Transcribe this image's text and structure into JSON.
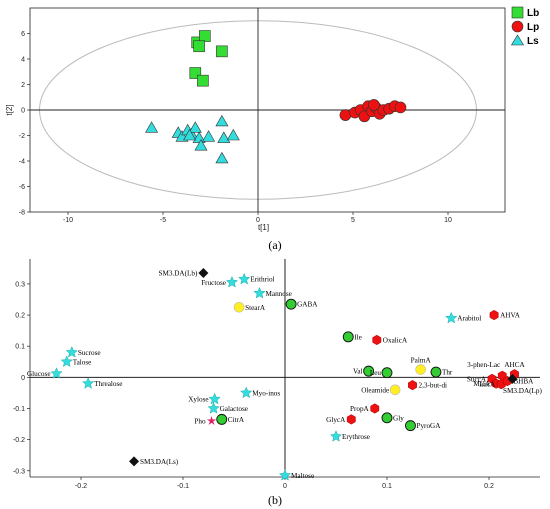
{
  "chart_data": [
    {
      "type": "scatter",
      "panel_label": "(a)",
      "xlabel": "t[1]",
      "ylabel": "t[2]",
      "xlim": [
        -12,
        13
      ],
      "ylim": [
        -8,
        8
      ],
      "xticks": [
        -10,
        -5,
        0,
        5,
        10
      ],
      "yticks": [
        -8,
        -6,
        -4,
        -2,
        0,
        2,
        4,
        6
      ],
      "xtick_labels": [
        "-10",
        "-5",
        "0",
        "5",
        "10"
      ],
      "ytick_labels": [
        "-8",
        "-6",
        "-4",
        "-2",
        "0",
        "2",
        "4",
        "6"
      ],
      "ellipse": {
        "center": [
          0,
          0
        ],
        "rx": 11.5,
        "ry": 7
      },
      "legend_position": "top-right",
      "colors": {
        "Lb": "#33dd33",
        "Lp": "#ee1111",
        "Ls": "#33dddd"
      },
      "series": [
        {
          "name": "Lb",
          "marker": "square",
          "points": [
            [
              -3.2,
              5.3
            ],
            [
              -2.8,
              5.8
            ],
            [
              -3.1,
              5.0
            ],
            [
              -1.9,
              4.6
            ],
            [
              -3.3,
              2.9
            ],
            [
              -2.9,
              2.3
            ]
          ]
        },
        {
          "name": "Lp",
          "marker": "circle",
          "points": [
            [
              4.6,
              -0.4
            ],
            [
              5.1,
              -0.2
            ],
            [
              5.4,
              0.0
            ],
            [
              5.6,
              -0.5
            ],
            [
              5.8,
              0.3
            ],
            [
              6.0,
              -0.1
            ],
            [
              6.2,
              0.2
            ],
            [
              6.4,
              -0.3
            ],
            [
              6.6,
              0.0
            ],
            [
              6.9,
              0.1
            ],
            [
              7.2,
              0.3
            ],
            [
              7.5,
              0.2
            ],
            [
              6.1,
              0.4
            ]
          ]
        },
        {
          "name": "Ls",
          "marker": "triangle",
          "points": [
            [
              -5.6,
              -1.4
            ],
            [
              -4.2,
              -1.8
            ],
            [
              -4.0,
              -2.1
            ],
            [
              -3.7,
              -1.6
            ],
            [
              -3.5,
              -1.9
            ],
            [
              -3.3,
              -1.4
            ],
            [
              -3.1,
              -2.2
            ],
            [
              -3.0,
              -2.8
            ],
            [
              -2.6,
              -2.1
            ],
            [
              -1.9,
              -0.9
            ],
            [
              -1.8,
              -2.2
            ],
            [
              -1.3,
              -2.0
            ],
            [
              -1.9,
              -3.8
            ],
            [
              -3.6,
              -2.0
            ]
          ]
        }
      ]
    },
    {
      "type": "scatter",
      "panel_label": "(b)",
      "xlim": [
        -0.25,
        0.25
      ],
      "ylim": [
        -0.32,
        0.38
      ],
      "xticks": [
        -0.2,
        -0.1,
        0,
        0.1,
        0.2
      ],
      "yticks": [
        -0.3,
        -0.2,
        -0.1,
        0,
        0.1,
        0.2,
        0.3
      ],
      "xtick_labels": [
        "-0.2",
        "-0.1",
        "0",
        "0.1",
        "0.2"
      ],
      "ytick_labels": [
        "-0.3",
        "-0.2",
        "-0.1",
        "0",
        "0.1",
        "0.2",
        "0.3"
      ],
      "colors": {
        "star": "#33dddd",
        "hex": "#ee1111",
        "circle": "#33cc33",
        "yellow": "#ffee22",
        "diamond": "#111111",
        "pho": "#dd2266"
      },
      "points": [
        {
          "label": "SM3.DA(Lb)",
          "x": -0.08,
          "y": 0.335,
          "marker": "diamond",
          "label_side": "left"
        },
        {
          "label": "Fructose",
          "x": -0.052,
          "y": 0.305,
          "marker": "star",
          "label_side": "left"
        },
        {
          "label": "Erithriol",
          "x": -0.04,
          "y": 0.315,
          "marker": "star",
          "label_side": "right"
        },
        {
          "label": "Mannose",
          "x": -0.025,
          "y": 0.27,
          "marker": "star",
          "label_side": "right"
        },
        {
          "label": "StearA",
          "x": -0.045,
          "y": 0.225,
          "marker": "yellow",
          "label_side": "right"
        },
        {
          "label": "GABA",
          "x": 0.006,
          "y": 0.235,
          "marker": "circle",
          "label_side": "right"
        },
        {
          "label": "Sucrose",
          "x": -0.209,
          "y": 0.08,
          "marker": "star",
          "label_side": "right"
        },
        {
          "label": "Talose",
          "x": -0.214,
          "y": 0.05,
          "marker": "star",
          "label_side": "right"
        },
        {
          "label": "Glucose",
          "x": -0.224,
          "y": 0.012,
          "marker": "star",
          "label_side": "left"
        },
        {
          "label": "Threalose",
          "x": -0.193,
          "y": -0.02,
          "marker": "star",
          "label_side": "right"
        },
        {
          "label": "Xylose",
          "x": -0.069,
          "y": -0.07,
          "marker": "star",
          "label_side": "left"
        },
        {
          "label": "Myo-inos",
          "x": -0.038,
          "y": -0.05,
          "marker": "star",
          "label_side": "right"
        },
        {
          "label": "Galactose",
          "x": -0.07,
          "y": -0.1,
          "marker": "star",
          "label_side": "right"
        },
        {
          "label": "Pho",
          "x": -0.072,
          "y": -0.14,
          "marker": "pho",
          "label_side": "left"
        },
        {
          "label": "CitrA",
          "x": -0.062,
          "y": -0.135,
          "marker": "circle",
          "label_side": "right"
        },
        {
          "label": "SM3.DA(Ls)",
          "x": -0.148,
          "y": -0.27,
          "marker": "diamond",
          "label_side": "right"
        },
        {
          "label": "Maltose",
          "x": 0.0,
          "y": -0.315,
          "marker": "star",
          "label_side": "right"
        },
        {
          "label": "Ile",
          "x": 0.062,
          "y": 0.13,
          "marker": "circle",
          "label_side": "right"
        },
        {
          "label": "OxalicA",
          "x": 0.09,
          "y": 0.12,
          "marker": "hex",
          "label_side": "right"
        },
        {
          "label": "Arabitol",
          "x": 0.163,
          "y": 0.19,
          "marker": "star",
          "label_side": "right"
        },
        {
          "label": "AHVA",
          "x": 0.205,
          "y": 0.2,
          "marker": "hex",
          "label_side": "right"
        },
        {
          "label": "Val",
          "x": 0.082,
          "y": 0.02,
          "marker": "circle",
          "label_side": "left"
        },
        {
          "label": "Leu",
          "x": 0.1,
          "y": 0.015,
          "marker": "circle",
          "label_side": "left"
        },
        {
          "label": "PalmA",
          "x": 0.133,
          "y": 0.025,
          "marker": "yellow",
          "label_side": "above"
        },
        {
          "label": "Thr",
          "x": 0.148,
          "y": 0.017,
          "marker": "circle",
          "label_side": "right"
        },
        {
          "label": "Oleamide",
          "x": 0.108,
          "y": -0.04,
          "marker": "yellow",
          "label_side": "left"
        },
        {
          "label": "2,3-but-di",
          "x": 0.125,
          "y": -0.025,
          "marker": "hex",
          "label_side": "right"
        },
        {
          "label": "PropA",
          "x": 0.088,
          "y": -0.1,
          "marker": "hex",
          "label_side": "left"
        },
        {
          "label": "GlycA",
          "x": 0.065,
          "y": -0.135,
          "marker": "hex",
          "label_side": "left"
        },
        {
          "label": "Gly",
          "x": 0.1,
          "y": -0.13,
          "marker": "circle",
          "label_side": "right"
        },
        {
          "label": "PyroGA",
          "x": 0.123,
          "y": -0.155,
          "marker": "circle",
          "label_side": "right"
        },
        {
          "label": "Erythrose",
          "x": 0.05,
          "y": -0.19,
          "marker": "star",
          "label_side": "right"
        },
        {
          "label": "3-phen-Lac",
          "x": 0.213,
          "y": 0.005,
          "marker": "hex",
          "label_side": "above-left"
        },
        {
          "label": "AHCA",
          "x": 0.225,
          "y": 0.01,
          "marker": "hex",
          "label_side": "above"
        },
        {
          "label": "SuccA",
          "x": 0.203,
          "y": -0.005,
          "marker": "hex",
          "label_side": "left"
        },
        {
          "label": "MalA",
          "x": 0.207,
          "y": -0.02,
          "marker": "hex",
          "label_side": "left"
        },
        {
          "label": "LacA",
          "x": 0.212,
          "y": -0.022,
          "marker": "hex",
          "label_side": "left"
        },
        {
          "label": "BHBA",
          "x": 0.218,
          "y": -0.012,
          "marker": "hex",
          "label_side": "right"
        },
        {
          "label": "SM3.DA(Lp)",
          "x": 0.223,
          "y": -0.005,
          "marker": "diamond",
          "label_side": "below"
        }
      ]
    }
  ]
}
